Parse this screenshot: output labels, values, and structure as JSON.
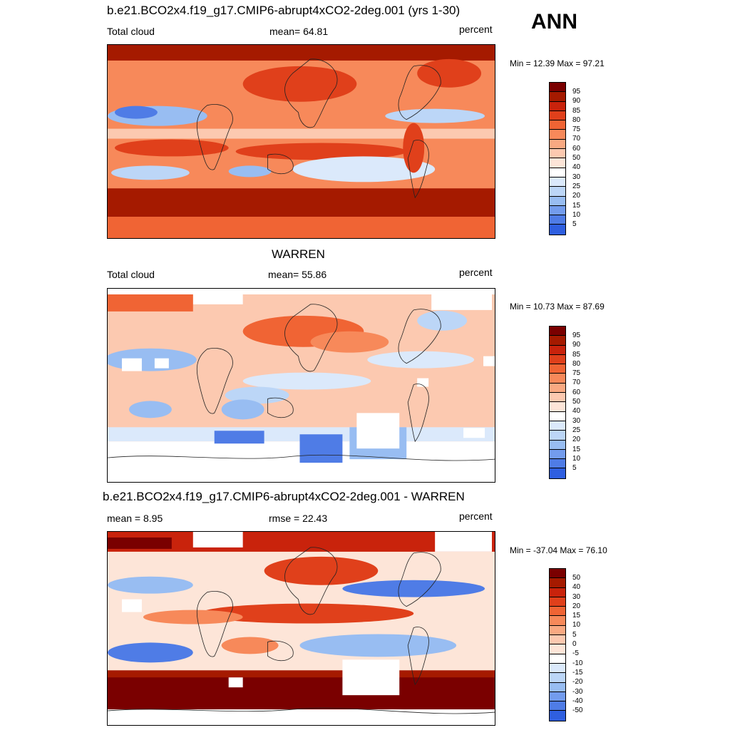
{
  "season": "ANN",
  "colors": {
    "pos": [
      "#7a0000",
      "#a51a00",
      "#c9230c",
      "#e0401b",
      "#f06434",
      "#f7895a",
      "#f9a982",
      "#fcc9b0",
      "#fde5d8"
    ],
    "neutral": "#ffffff",
    "neg": [
      "#dbe9fb",
      "#bcd6f7",
      "#98bdf2",
      "#739ced",
      "#4f7ce6",
      "#2f5fe0",
      "#1540c8",
      "#0a22a0",
      "#00007f"
    ]
  },
  "panels": [
    {
      "title": "b.e21.BCO2x4.f19_g17.CMIP6-abrupt4xCO2-2deg.001 (yrs 1-30)",
      "left_label": "Total cloud",
      "mid_label": "mean=  64.81",
      "right_label": "percent",
      "minmax": "Min =  12.39 Max =  97.21",
      "legend_labels": [
        "95",
        "90",
        "85",
        "80",
        "75",
        "70",
        "60",
        "50",
        "40",
        "30",
        "25",
        "20",
        "15",
        "10",
        "5"
      ]
    },
    {
      "title": "WARREN",
      "left_label": "Total cloud",
      "mid_label": "mean=  55.86",
      "right_label": "percent",
      "minmax": "Min =  10.73 Max =  87.69",
      "legend_labels": [
        "95",
        "90",
        "85",
        "80",
        "75",
        "70",
        "60",
        "50",
        "40",
        "30",
        "25",
        "20",
        "15",
        "10",
        "5"
      ]
    },
    {
      "title": "b.e21.BCO2x4.f19_g17.CMIP6-abrupt4xCO2-2deg.001 - WARREN",
      "left_label": "mean =   8.95",
      "mid_label": "rmse =  22.43",
      "right_label": "percent",
      "minmax": "Min = -37.04 Max =  76.10",
      "legend_labels": [
        "50",
        "40",
        "30",
        "20",
        "15",
        "10",
        "5",
        "0",
        "-5",
        "-10",
        "-15",
        "-20",
        "-30",
        "-40",
        "-50"
      ]
    }
  ]
}
